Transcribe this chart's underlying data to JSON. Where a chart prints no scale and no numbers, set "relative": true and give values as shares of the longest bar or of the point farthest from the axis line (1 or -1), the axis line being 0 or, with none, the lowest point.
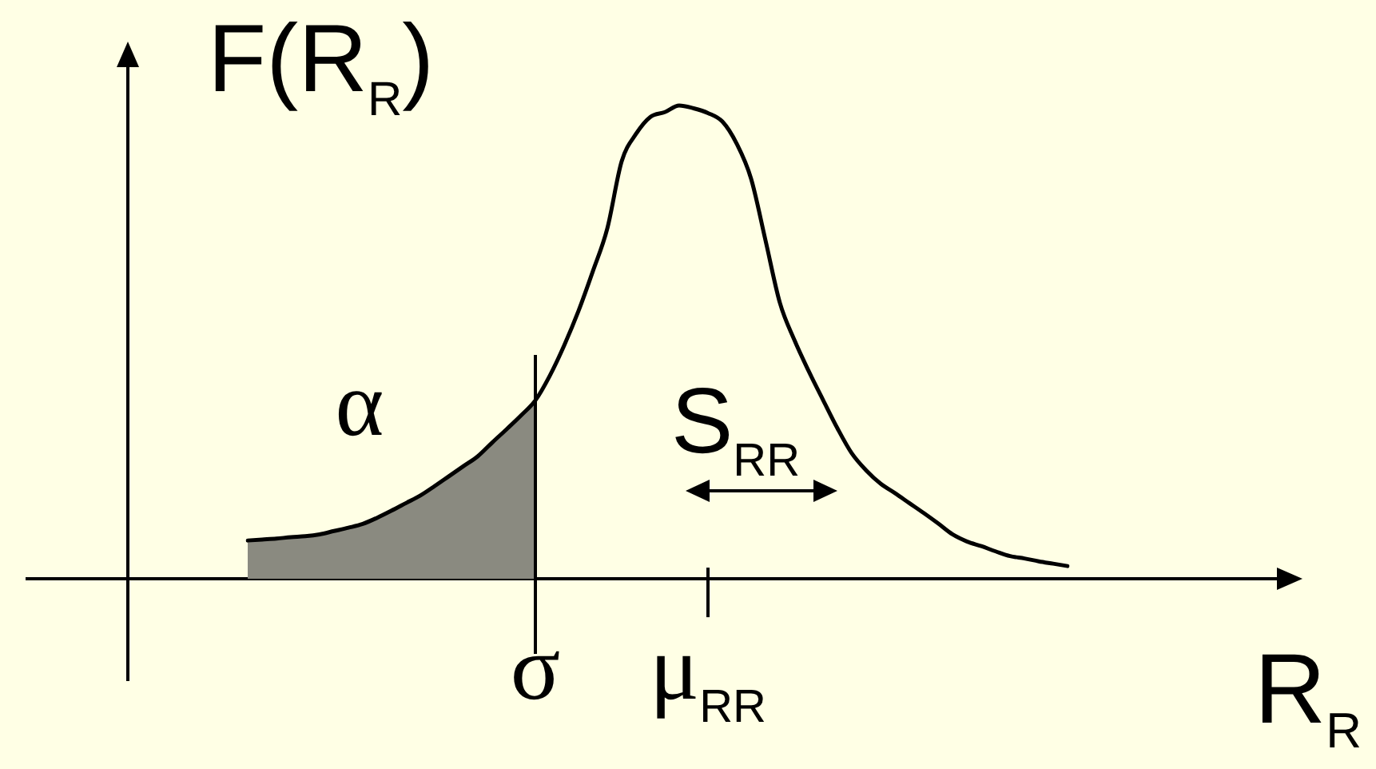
{
  "chart_data": {
    "type": "line",
    "relative": true,
    "ylabel": "F(R$_{R}$)",
    "xlabel": "R$_{R}$",
    "categories": [
      null,
      null,
      null,
      null,
      null,
      null,
      null,
      null,
      null,
      null,
      null,
      null,
      null,
      null,
      null,
      null,
      null,
      null,
      null,
      null,
      "σ",
      null,
      null,
      null,
      null,
      null,
      null,
      null,
      null,
      null,
      null,
      null,
      "μ$_{RR}$",
      null,
      null,
      null,
      null,
      null,
      null,
      null,
      null,
      null,
      null,
      null,
      null,
      null,
      null,
      null,
      null,
      null,
      null,
      null,
      null,
      null,
      null,
      null,
      null,
      null
    ],
    "series": [
      {
        "type": "area",
        "color": "#8a8a80",
        "values": [
          0.081,
          0.083,
          0.085,
          0.088,
          0.09,
          0.094,
          0.101,
          0.108,
          0.116,
          0.129,
          0.144,
          0.16,
          0.176,
          0.196,
          0.217,
          0.238,
          0.259,
          0.288,
          0.316,
          0.345,
          0.377,
          null,
          null,
          null,
          null,
          null,
          null,
          null,
          null,
          null,
          null,
          null,
          null,
          null,
          null,
          null,
          null,
          null,
          null,
          null,
          null,
          null,
          null,
          null,
          null,
          null,
          null,
          null,
          null,
          null,
          null,
          null,
          null,
          null,
          null,
          null,
          null,
          null
        ]
      },
      {
        "type": "line",
        "color": "#000000",
        "values": [
          0.081,
          0.083,
          0.085,
          0.088,
          0.09,
          0.094,
          0.101,
          0.108,
          0.116,
          0.129,
          0.144,
          0.16,
          0.176,
          0.196,
          0.217,
          0.238,
          0.259,
          0.288,
          0.316,
          0.345,
          0.377,
          0.429,
          0.493,
          0.566,
          0.65,
          0.74,
          0.882,
          0.94,
          0.976,
          0.986,
          1,
          0.994,
          0.984,
          0.966,
          0.919,
          0.845,
          0.715,
          0.583,
          0.505,
          0.439,
          0.378,
          0.318,
          0.265,
          0.229,
          0.201,
          0.181,
          0.16,
          0.139,
          0.117,
          0.094,
          0.079,
          0.069,
          0.058,
          0.048,
          0.043,
          0.037,
          0.032,
          0.027
        ]
      }
    ],
    "ref_lines": [
      {
        "axis": "x",
        "value": "σ"
      }
    ],
    "annotations": [
      "α",
      "S$_{RR}$"
    ]
  }
}
